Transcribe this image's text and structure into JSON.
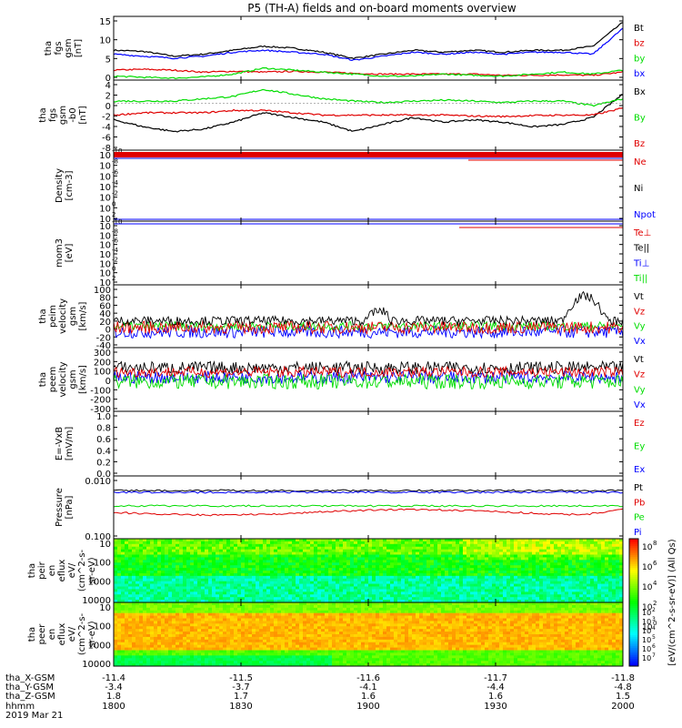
{
  "title": "P5 (TH-A) fields and on-board moments overview",
  "colors": {
    "black": "#000000",
    "red": "#e00000",
    "green": "#00dd00",
    "blue": "#0000ff"
  },
  "chart_data": [
    {
      "id": "fgs_btotal",
      "type": "line",
      "ylabel": [
        "tha",
        "fgs",
        "gsm",
        "[nT]"
      ],
      "ylim": [
        0,
        16
      ],
      "yticks": [
        "0",
        "5",
        "10",
        "15"
      ],
      "series": [
        {
          "name": "Bt",
          "color": "#000000",
          "values": [
            7.5,
            7.2,
            6.0,
            6.5,
            7.5,
            8.5,
            8.0,
            7.0,
            5.5,
            6.5,
            7.5,
            7.0,
            7.5,
            7.0,
            7.5,
            7.5,
            8.5,
            14.5
          ]
        },
        {
          "name": "bz",
          "color": "#e00000",
          "values": [
            2.5,
            2.7,
            2.5,
            2.0,
            2.2,
            2.0,
            2.2,
            2.0,
            1.7,
            1.5,
            1.5,
            1.5,
            1.5,
            1.2,
            1.2,
            1.3,
            1.2,
            2.0
          ]
        },
        {
          "name": "by",
          "color": "#00dd00",
          "values": [
            1.0,
            0.7,
            0.5,
            0.8,
            1.5,
            3.0,
            2.5,
            2.0,
            1.5,
            1.0,
            1.0,
            1.5,
            1.2,
            1.0,
            1.5,
            2.0,
            1.5,
            2.5
          ]
        },
        {
          "name": "bx",
          "color": "#0000ff",
          "values": [
            6.5,
            6.0,
            5.5,
            6.0,
            7.0,
            7.5,
            7.0,
            6.5,
            5.0,
            6.0,
            7.0,
            6.5,
            7.0,
            6.5,
            7.0,
            7.0,
            6.5,
            13.0
          ]
        }
      ]
    },
    {
      "id": "fgs_components",
      "type": "line",
      "ylabel": [
        "tha",
        "fgs",
        "gsm",
        "-b0",
        "[nT]"
      ],
      "ylim": [
        -10,
        5
      ],
      "yticks": [
        "-8",
        "-6",
        "-4",
        "-2",
        "0",
        "2",
        "4"
      ],
      "series": [
        {
          "name": "Bx",
          "color": "#000000",
          "values": [
            -3.5,
            -5,
            -6,
            -5.5,
            -4,
            -2,
            -3,
            -4,
            -6,
            -4.5,
            -3,
            -4,
            -3.5,
            -4,
            -5,
            -4.5,
            -3,
            2
          ]
        },
        {
          "name": "By",
          "color": "#00dd00",
          "values": [
            0.5,
            0.5,
            0.5,
            1.0,
            1.5,
            3.0,
            2.0,
            1.0,
            0.5,
            0.2,
            0.5,
            0.7,
            0.5,
            0.2,
            0.5,
            0.5,
            -0.5,
            1.0
          ]
        },
        {
          "name": "Bz",
          "color": "#e00000",
          "values": [
            -2.5,
            -2.0,
            -2.0,
            -2.0,
            -1.5,
            -1.5,
            -2.0,
            -2.5,
            -2.5,
            -2.5,
            -2.5,
            -2.5,
            -2.7,
            -2.8,
            -2.6,
            -2.5,
            -2.5,
            -1.0
          ]
        }
      ]
    },
    {
      "id": "density",
      "type": "line",
      "ylabel": [
        "Density",
        "[cm-3]"
      ],
      "yticks": [
        "10",
        "10",
        "10",
        "10",
        "10",
        "10",
        "10"
      ],
      "yexp": [
        "2",
        "0",
        "-2",
        "-4",
        "-6",
        "-8",
        "-10",
        "-12",
        "-14"
      ],
      "series": [
        {
          "name": "Ne",
          "color": "#e00000"
        },
        {
          "name": "Ni",
          "color": "#000000"
        },
        {
          "name": "Npot",
          "color": "#0000ff"
        }
      ]
    },
    {
      "id": "temperature",
      "type": "line",
      "ylabel": [
        "mom3",
        "[eV]"
      ],
      "yticks": [
        "10",
        "10",
        "10",
        "10",
        "10",
        "10",
        "10"
      ],
      "yexp": [
        "2",
        "0",
        "-2",
        "-4",
        "-6",
        "-8",
        "-10"
      ],
      "series": [
        {
          "name": "Te⊥",
          "color": "#e00000"
        },
        {
          "name": "Te||",
          "color": "#000000"
        },
        {
          "name": "Ti⊥",
          "color": "#0000ff"
        },
        {
          "name": "Ti||",
          "color": "#00dd00"
        }
      ]
    },
    {
      "id": "peim_velocity",
      "type": "line",
      "ylabel": [
        "tha",
        "peim",
        "velocity",
        "gsm",
        "[km/s]"
      ],
      "ylim": [
        -40,
        100
      ],
      "yticks": [
        "-40",
        "-20",
        "0",
        "20",
        "40",
        "60",
        "80",
        "100"
      ],
      "series": [
        {
          "name": "Vt",
          "color": "#000000"
        },
        {
          "name": "Vz",
          "color": "#e00000"
        },
        {
          "name": "Vy",
          "color": "#00dd00"
        },
        {
          "name": "Vx",
          "color": "#0000ff"
        }
      ]
    },
    {
      "id": "peem_velocity",
      "type": "line",
      "ylabel": [
        "tha",
        "peem",
        "velocity",
        "gsm",
        "[km/s]"
      ],
      "ylim": [
        -300,
        300
      ],
      "yticks": [
        "-300",
        "-200",
        "-100",
        "0",
        "100",
        "200",
        "300"
      ],
      "series": [
        {
          "name": "Vt",
          "color": "#000000"
        },
        {
          "name": "Vz",
          "color": "#e00000"
        },
        {
          "name": "Vy",
          "color": "#00dd00"
        },
        {
          "name": "Vx",
          "color": "#0000ff"
        }
      ]
    },
    {
      "id": "efield",
      "type": "line",
      "ylabel": [
        "E=-VxB",
        "[mV/m]"
      ],
      "ylim": [
        0,
        1
      ],
      "yticks": [
        "0.0",
        "0.2",
        "0.4",
        "0.6",
        "0.8",
        "1.0"
      ],
      "series": [
        {
          "name": "Ez",
          "color": "#e00000"
        },
        {
          "name": "Ey",
          "color": "#00dd00"
        },
        {
          "name": "Ex",
          "color": "#0000ff"
        }
      ]
    },
    {
      "id": "pressure",
      "type": "line",
      "ylabel": [
        "Pressure",
        "[nPa]"
      ],
      "yticks": [
        "0.100",
        "0.010"
      ],
      "series": [
        {
          "name": "Pt",
          "color": "#000000"
        },
        {
          "name": "Pb",
          "color": "#e00000"
        },
        {
          "name": "Pe",
          "color": "#00dd00"
        },
        {
          "name": "Pi",
          "color": "#0000ff"
        }
      ]
    },
    {
      "id": "peir_spectrogram",
      "type": "heatmap",
      "ylabel": [
        "tha",
        "peir",
        "en",
        "eflux",
        "eV/",
        "(cm^2-s-",
        "sr-eV)"
      ],
      "yticks": [
        "10000",
        "1000",
        "100",
        "10"
      ]
    },
    {
      "id": "peer_spectrogram",
      "type": "heatmap",
      "ylabel": [
        "tha",
        "peer",
        "en",
        "eflux",
        "eV/",
        "(cm^2-s-",
        "sr-eV)"
      ],
      "yticks": [
        "10000",
        "1000",
        "100",
        "10"
      ]
    }
  ],
  "colorbar": {
    "label": "[eV/(cm^2-s-sr-eV)] (All Qs)",
    "ticks": [
      "10",
      "10",
      "10",
      "10",
      "10"
    ],
    "exps": [
      "8",
      "6",
      "4",
      "2",
      "0"
    ]
  },
  "colorbar2": {
    "ticks": [
      "10",
      "10",
      "10",
      "10",
      "10",
      "10"
    ],
    "exps": [
      "7",
      "6",
      "5",
      "4",
      "3",
      "2"
    ]
  },
  "axis_footer": {
    "rows": [
      {
        "label": "tha_X-GSM",
        "values": [
          "-11.4",
          "-11.5",
          "-11.6",
          "-11.7",
          "-11.8"
        ]
      },
      {
        "label": "tha_Y-GSM",
        "values": [
          "-3.4",
          "-3.7",
          "-4.1",
          "-4.4",
          "-4.8"
        ]
      },
      {
        "label": "tha_Z-GSM",
        "values": [
          "1.8",
          "1.7",
          "1.6",
          "1.6",
          "1.5"
        ]
      },
      {
        "label": "hhmm",
        "values": [
          "1800",
          "1830",
          "1900",
          "1930",
          "2000"
        ]
      }
    ],
    "date": "2019 Mar 21"
  }
}
